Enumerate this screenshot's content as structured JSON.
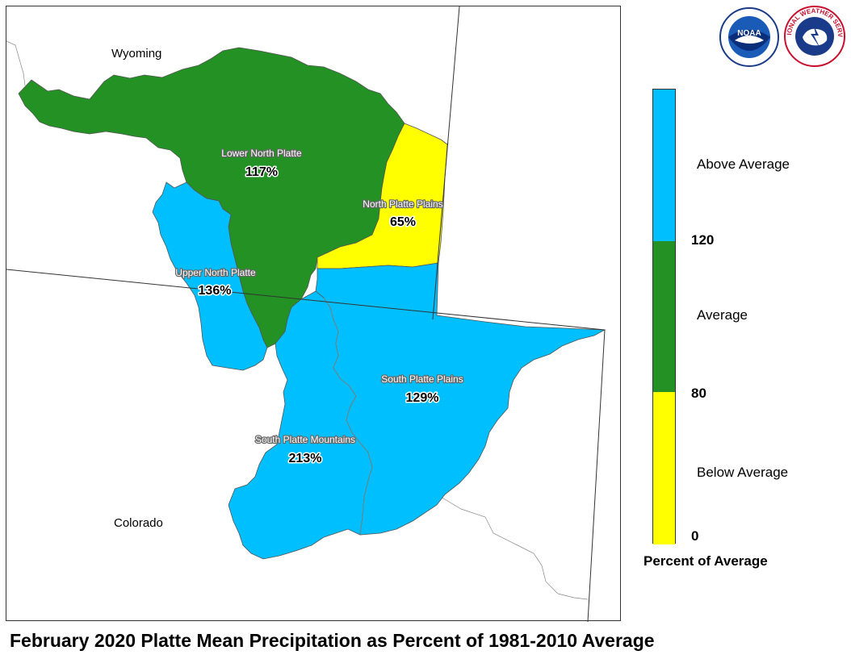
{
  "title": "February 2020 Platte Mean Precipitation as Percent of 1981-2010 Average",
  "map": {
    "states": {
      "wyoming": "Wyoming",
      "colorado": "Colorado"
    },
    "basins": [
      {
        "name": "Lower North Platte",
        "percent": "117%",
        "category": "Average"
      },
      {
        "name": "North Platte Plains",
        "percent": "65%",
        "category": "Below Average"
      },
      {
        "name": "Upper North Platte",
        "percent": "136%",
        "category": "Above Average"
      },
      {
        "name": "South Platte Plains",
        "percent": "129%",
        "category": "Above Average"
      },
      {
        "name": "South Platte Mountains",
        "percent": "213%",
        "category": "Above Average"
      }
    ]
  },
  "legend": {
    "title": "Percent of Average",
    "categories": [
      {
        "label": "Above Average",
        "color": "#00bfff"
      },
      {
        "label": "Average",
        "color": "#239123"
      },
      {
        "label": "Below Average",
        "color": "#ffff00"
      }
    ],
    "breaks": [
      "120",
      "80",
      "0"
    ]
  },
  "logos": {
    "noaa": "NOAA",
    "nws": "NATIONAL WEATHER SERVICE"
  },
  "colors": {
    "above": "#00bfff",
    "average": "#239123",
    "below": "#ffff00"
  }
}
